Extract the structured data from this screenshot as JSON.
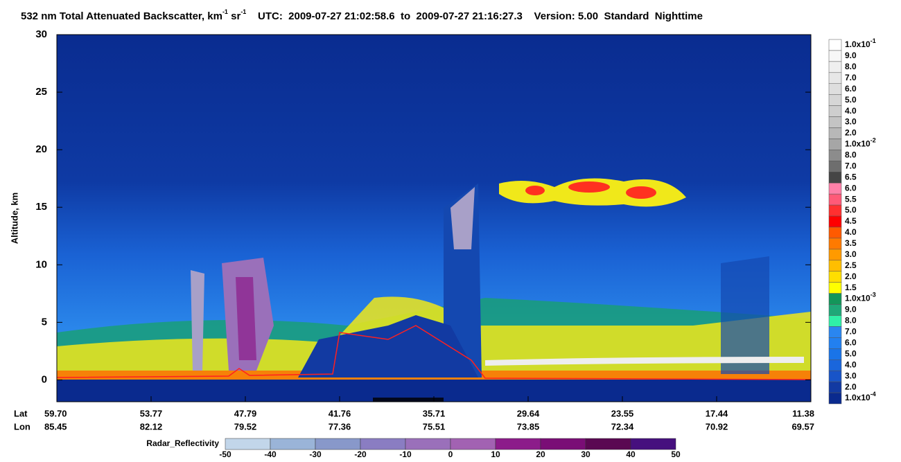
{
  "chart_data": {
    "type": "heatmap",
    "title_parts": [
      "532 nm Total Attenuated Backscatter, km",
      "-1",
      " sr",
      "-1"
    ],
    "subtitle": "UTC:  2009-07-27 21:02:58.6  to  2009-07-27 21:16:27.3    Version: 5.00  Standard  Nighttime",
    "ylabel": "Altitude, km",
    "ylim": [
      -1.9,
      30
    ],
    "yticks": [
      0,
      5,
      10,
      15,
      20,
      25,
      30
    ],
    "x_row_labels": [
      "Lat",
      "Lon"
    ],
    "lat_labels": [
      "59.70",
      "53.77",
      "47.79",
      "41.76",
      "35.71",
      "29.64",
      "23.55",
      "17.44",
      "11.38"
    ],
    "lon_labels": [
      "85.45",
      "82.12",
      "79.52",
      "77.36",
      "75.51",
      "73.85",
      "72.34",
      "70.92",
      "69.57"
    ],
    "colorbar": {
      "labels": [
        {
          "base": "1.0x10",
          "exp": "-1"
        },
        "9.0",
        "8.0",
        "7.0",
        "6.0",
        "5.0",
        "4.0",
        "3.0",
        "2.0",
        {
          "base": "1.0x10",
          "exp": "-2"
        },
        "8.0",
        "7.0",
        "6.5",
        "6.0",
        "5.5",
        "5.0",
        "4.5",
        "4.0",
        "3.5",
        "3.0",
        "2.5",
        "2.0",
        "1.5",
        {
          "base": "1.0x10",
          "exp": "-3"
        },
        "9.0",
        "8.0",
        "7.0",
        "6.0",
        "5.0",
        "4.0",
        "3.0",
        "2.0",
        {
          "base": "1.0x10",
          "exp": "-4"
        }
      ],
      "colors": [
        "#ffffff",
        "#f7f7f7",
        "#efefef",
        "#e7e7e7",
        "#dedede",
        "#d6d6d6",
        "#cecece",
        "#c4c4c4",
        "#b8b8b8",
        "#a6a6a6",
        "#8c8c8c",
        "#6e6e6e",
        "#454545",
        "#ff80a8",
        "#ff5a78",
        "#ff3030",
        "#ff0000",
        "#ff5a00",
        "#ff7a00",
        "#ff9a00",
        "#ffbe00",
        "#ffde00",
        "#ffff00",
        "#13965a",
        "#1fa878",
        "#30f0a8",
        "#2a86f0",
        "#2280f0",
        "#1a74e8",
        "#1a66dc",
        "#1854c8",
        "#123aa2",
        "#0a2a8e"
      ]
    },
    "radar_label": "Radar_Reflectivity",
    "radar_ticks": [
      -50,
      -40,
      -30,
      -20,
      -10,
      0,
      10,
      20,
      30,
      40,
      50
    ],
    "radar_colors": [
      "#c2d6ea",
      "#9ab4d8",
      "#8898ca",
      "#8a7dc2",
      "#9a70ba",
      "#a262b2",
      "#8c1c8a",
      "#7a0e76",
      "#5a0852",
      "#46107e"
    ]
  }
}
